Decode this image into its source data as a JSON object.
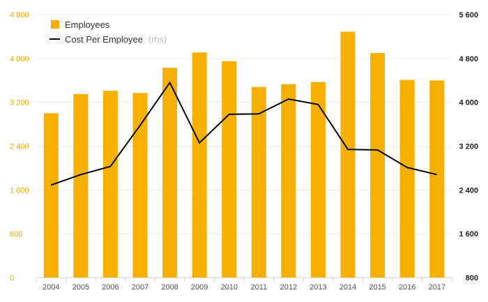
{
  "chart_data": {
    "type": "bar+line",
    "categories": [
      "2004",
      "2005",
      "2006",
      "2007",
      "2008",
      "2009",
      "2010",
      "2011",
      "2012",
      "2013",
      "2014",
      "2015",
      "2016",
      "2017"
    ],
    "series": [
      {
        "name": "Employees",
        "type": "bar",
        "axis": "left",
        "color": "#f7b000",
        "values": [
          3000,
          3350,
          3410,
          3370,
          3830,
          4110,
          3950,
          3480,
          3530,
          3570,
          4490,
          4100,
          3610,
          3600
        ]
      },
      {
        "name": "Cost Per Employee",
        "type": "line",
        "axis": "right",
        "color": "#000000",
        "values": [
          2490,
          2680,
          2830,
          3580,
          4360,
          3260,
          3780,
          3790,
          4060,
          3960,
          3140,
          3130,
          2810,
          2680
        ]
      }
    ],
    "legend_suffix": "(rhs)",
    "left_axis": {
      "ticks": [
        0,
        800,
        1600,
        2400,
        3200,
        4000,
        4800
      ],
      "tick_labels": [
        "0",
        "800",
        "1 600",
        "2 400",
        "3 200",
        "4 000",
        "4 800"
      ],
      "range": [
        0,
        4800
      ],
      "color": "#f0a800"
    },
    "right_axis": {
      "ticks": [
        800,
        1600,
        2400,
        3200,
        4000,
        4800,
        5600
      ],
      "tick_labels": [
        "800",
        "1 600",
        "2 400",
        "3 200",
        "4 000",
        "4 800",
        "5 600"
      ],
      "range": [
        800,
        5600
      ]
    },
    "grid": true,
    "legend_position": "top-left"
  }
}
